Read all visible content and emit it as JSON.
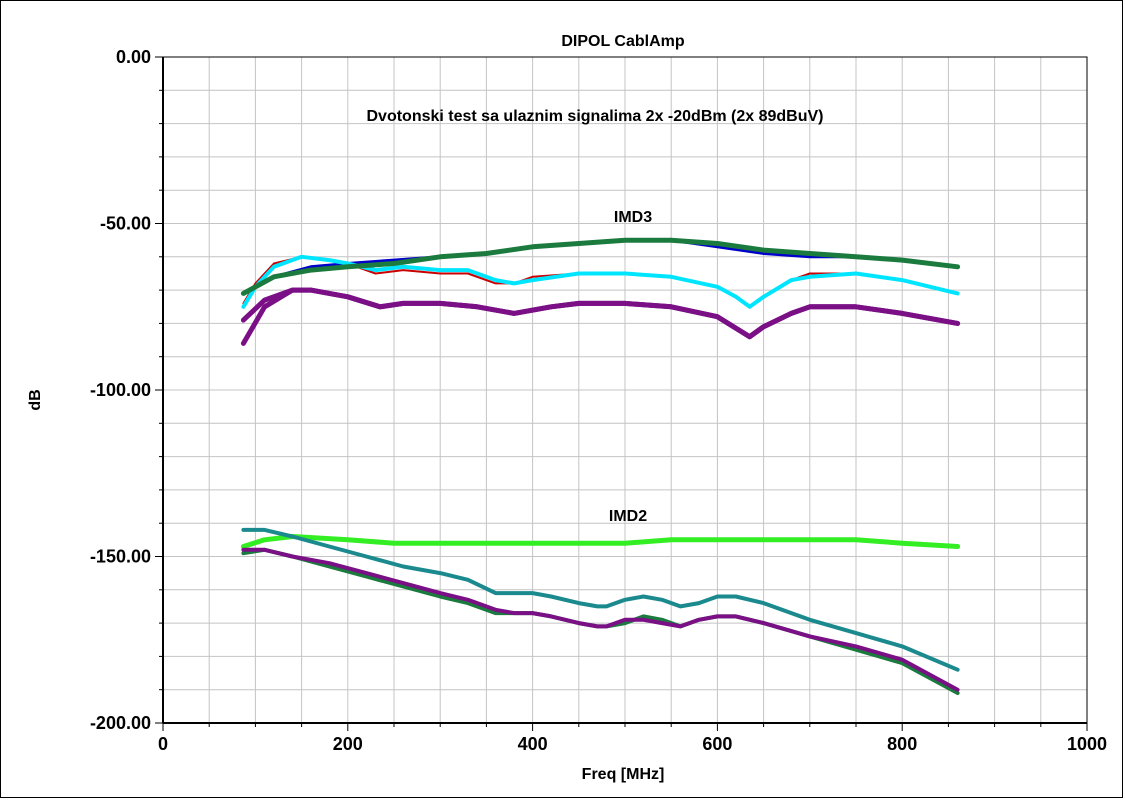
{
  "chart_data": {
    "type": "line",
    "title": "DIPOL CablAmp",
    "annotations": [
      "Dvotonski test sa ulaznim signalima 2x -20dBm (2x 89dBuV)",
      "IMD3",
      "IMD2"
    ],
    "xlabel": "Freq [MHz]",
    "ylabel": "dB",
    "xlim": [
      0,
      1000
    ],
    "ylim": [
      -200,
      0
    ],
    "x_ticks": [
      "0",
      "200",
      "400",
      "600",
      "800",
      "1000"
    ],
    "y_ticks": [
      "0.00",
      "-50.00",
      "-100.00",
      "-150.00",
      "-200.00"
    ],
    "grid": true,
    "series": [
      {
        "color": "#0000cc",
        "width": 3,
        "x": [
          87,
          120,
          160,
          200,
          250,
          300,
          350,
          400,
          450,
          500,
          550,
          600,
          650,
          700,
          750,
          800,
          860
        ],
        "y": [
          -71,
          -66,
          -63,
          -62,
          -61,
          -60,
          -59,
          -57,
          -56,
          -55,
          -55,
          -57,
          -59,
          -60,
          -60,
          -61,
          -63
        ]
      },
      {
        "color": "#cc0000",
        "width": 2,
        "x": [
          87,
          100,
          120,
          150,
          180,
          200,
          230,
          260,
          300,
          330,
          360,
          380,
          400,
          450,
          500,
          550,
          600,
          620,
          635,
          650,
          680,
          700,
          750,
          800,
          860
        ],
        "y": [
          -74,
          -68,
          -62,
          -60,
          -61,
          -62,
          -65,
          -64,
          -65,
          -65,
          -68,
          -68,
          -66,
          -65,
          -65,
          -66,
          -69,
          -72,
          -75,
          -72,
          -67,
          -65,
          -65,
          -67,
          -71
        ]
      },
      {
        "color": "#00e5ff",
        "width": 4,
        "x": [
          87,
          100,
          120,
          150,
          180,
          200,
          230,
          260,
          300,
          330,
          360,
          380,
          400,
          450,
          500,
          550,
          600,
          620,
          635,
          650,
          680,
          700,
          750,
          800,
          860
        ],
        "y": [
          -75,
          -69,
          -63,
          -60,
          -61,
          -62,
          -64,
          -63,
          -64,
          -64,
          -67,
          -68,
          -67,
          -65,
          -65,
          -66,
          -69,
          -72,
          -75,
          -72,
          -67,
          -66,
          -65,
          -67,
          -71
        ]
      },
      {
        "color": "#7a0f86",
        "width": 5,
        "x": [
          87,
          110,
          140,
          160,
          200,
          235,
          260,
          300,
          340,
          380,
          420,
          450,
          500,
          550,
          600,
          635,
          650,
          680,
          700,
          750,
          800,
          860
        ],
        "y": [
          -86,
          -75,
          -70,
          -70,
          -72,
          -75,
          -74,
          -74,
          -75,
          -77,
          -75,
          -74,
          -74,
          -75,
          -78,
          -84,
          -81,
          -77,
          -75,
          -75,
          -77,
          -80
        ]
      },
      {
        "color": "#7a0f86",
        "width": 5,
        "x": [
          87,
          110,
          140,
          160,
          200,
          235,
          260,
          300,
          340,
          380,
          420,
          450,
          500,
          550,
          600,
          635,
          650,
          680,
          700,
          750,
          800,
          860
        ],
        "y": [
          -79,
          -73,
          -70,
          -70,
          -72,
          -75,
          -74,
          -74,
          -75,
          -77,
          -75,
          -74,
          -74,
          -75,
          -78,
          -84,
          -81,
          -77,
          -75,
          -75,
          -77,
          -80
        ]
      },
      {
        "color": "#1b7a3d",
        "width": 5,
        "x": [
          87,
          120,
          160,
          200,
          250,
          300,
          350,
          400,
          450,
          500,
          550,
          600,
          650,
          700,
          750,
          800,
          860
        ],
        "y": [
          -71,
          -66,
          -64,
          -63,
          -62,
          -60,
          -59,
          -57,
          -56,
          -55,
          -55,
          -56,
          -58,
          -59,
          -60,
          -61,
          -63
        ]
      },
      {
        "color": "#33ee22",
        "width": 5,
        "x": [
          87,
          110,
          140,
          200,
          250,
          300,
          350,
          400,
          450,
          500,
          550,
          600,
          650,
          700,
          750,
          800,
          860
        ],
        "y": [
          -147,
          -145,
          -144,
          -145,
          -146,
          -146,
          -146,
          -146,
          -146,
          -146,
          -145,
          -145,
          -145,
          -145,
          -145,
          -146,
          -147
        ]
      },
      {
        "color": "#1b8a8e",
        "width": 4,
        "x": [
          87,
          110,
          140,
          180,
          220,
          260,
          300,
          330,
          360,
          380,
          400,
          420,
          450,
          470,
          480,
          500,
          520,
          540,
          560,
          580,
          600,
          620,
          650,
          700,
          750,
          800,
          860
        ],
        "y": [
          -142,
          -142,
          -144,
          -147,
          -150,
          -153,
          -155,
          -157,
          -161,
          -161,
          -161,
          -162,
          -164,
          -165,
          -165,
          -163,
          -162,
          -163,
          -165,
          -164,
          -162,
          -162,
          -164,
          -169,
          -173,
          -177,
          -184
        ]
      },
      {
        "color": "#1b7a3d",
        "width": 4,
        "x": [
          87,
          110,
          140,
          180,
          220,
          260,
          300,
          330,
          360,
          380,
          400,
          420,
          450,
          470,
          480,
          500,
          520,
          540,
          560,
          580,
          600,
          620,
          650,
          700,
          750,
          800,
          860
        ],
        "y": [
          -149,
          -148,
          -150,
          -153,
          -156,
          -159,
          -162,
          -164,
          -167,
          -167,
          -167,
          -168,
          -170,
          -171,
          -171,
          -170,
          -168,
          -169,
          -171,
          -169,
          -168,
          -168,
          -170,
          -174,
          -178,
          -182,
          -191
        ]
      },
      {
        "color": "#7a0f86",
        "width": 4,
        "x": [
          87,
          110,
          140,
          180,
          220,
          260,
          300,
          330,
          360,
          380,
          400,
          420,
          450,
          470,
          480,
          500,
          520,
          540,
          560,
          580,
          600,
          620,
          650,
          700,
          750,
          800,
          860
        ],
        "y": [
          -148,
          -148,
          -150,
          -152,
          -155,
          -158,
          -161,
          -163,
          -166,
          -167,
          -167,
          -168,
          -170,
          -171,
          -171,
          -169,
          -169,
          -170,
          -171,
          -169,
          -168,
          -168,
          -170,
          -174,
          -177,
          -181,
          -190
        ]
      }
    ]
  }
}
